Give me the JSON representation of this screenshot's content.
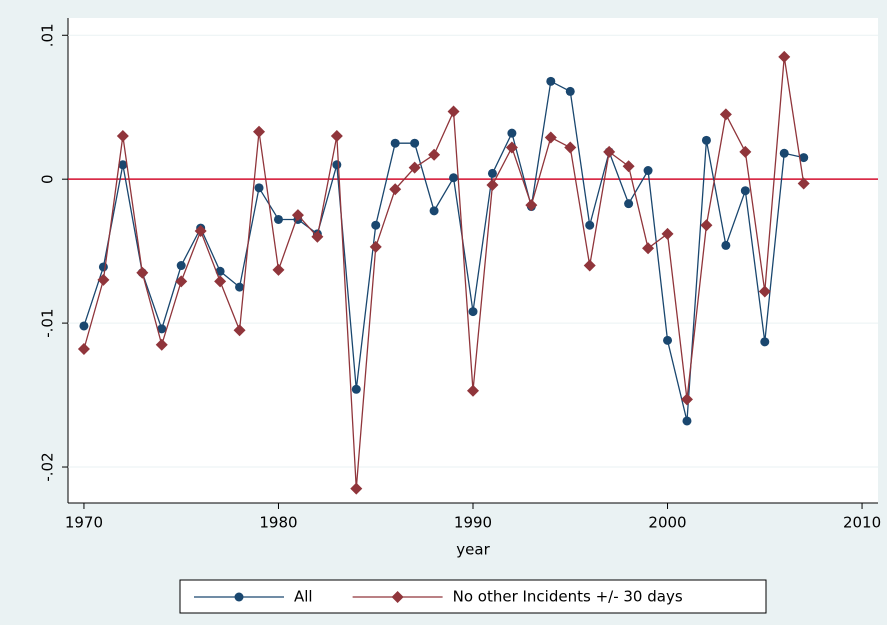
{
  "chart_data": {
    "type": "line",
    "xlabel": "year",
    "x": [
      1970,
      1971,
      1972,
      1973,
      1974,
      1975,
      1976,
      1977,
      1978,
      1979,
      1980,
      1981,
      1982,
      1983,
      1984,
      1985,
      1986,
      1987,
      1988,
      1989,
      1990,
      1991,
      1992,
      1993,
      1994,
      1995,
      1996,
      1997,
      1998,
      1999,
      2000,
      2001,
      2002,
      2003,
      2004,
      2005,
      2006,
      2007
    ],
    "series": [
      {
        "name": "All",
        "color": "#1a476f",
        "marker": "circle",
        "values": [
          -0.0102,
          -0.0061,
          0.001,
          -0.0065,
          -0.0104,
          -0.006,
          -0.0034,
          -0.0064,
          -0.0075,
          -0.0006,
          -0.0028,
          -0.0028,
          -0.0038,
          0.001,
          -0.0146,
          -0.0032,
          0.0025,
          0.0025,
          -0.0022,
          0.0001,
          -0.0092,
          0.0004,
          0.0032,
          -0.0019,
          0.0068,
          0.0061,
          -0.0032,
          0.0019,
          -0.0017,
          0.0006,
          -0.0112,
          -0.0168,
          0.0027,
          -0.0046,
          -0.0008,
          -0.0113,
          0.0018,
          0.0015
        ]
      },
      {
        "name": "No other Incidents +/- 30 days",
        "color": "#90353b",
        "marker": "diamond",
        "values": [
          -0.0118,
          -0.007,
          0.003,
          -0.0065,
          -0.0115,
          -0.0071,
          -0.0036,
          -0.0071,
          -0.0105,
          0.0033,
          -0.0063,
          -0.0025,
          -0.004,
          0.003,
          -0.0215,
          -0.0047,
          -0.0007,
          0.0008,
          0.0017,
          0.0047,
          -0.0147,
          -0.0004,
          0.0022,
          -0.0018,
          0.0029,
          0.0022,
          -0.006,
          0.0019,
          0.0009,
          -0.0048,
          -0.0038,
          -0.0153,
          -0.0032,
          0.0045,
          0.0019,
          -0.0078,
          0.0085,
          -0.0003
        ]
      }
    ],
    "xlim": [
      1969.18,
      2010.82
    ],
    "xticks": [
      1970,
      1980,
      1990,
      2000,
      2010
    ],
    "ylim": [
      -0.0225,
      0.0112
    ],
    "yticks": [
      {
        "value": -0.02,
        "label": "-.02"
      },
      {
        "value": -0.01,
        "label": "-.01"
      },
      0,
      {
        "value": 0.01,
        "label": ".01"
      }
    ],
    "grid": true,
    "refline": {
      "value": 0,
      "color": "#d40f2f"
    },
    "legend": "bottom"
  }
}
